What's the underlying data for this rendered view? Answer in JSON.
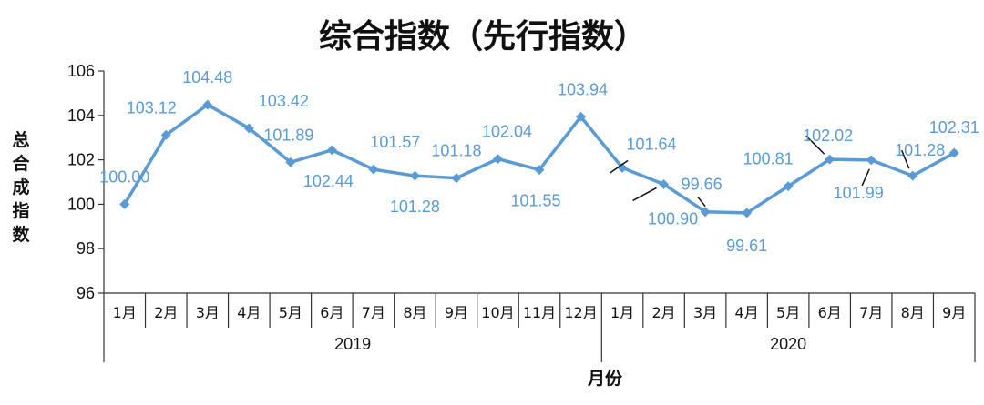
{
  "chart_data": {
    "type": "line",
    "title": "综合指数（先行指数）",
    "ylabel": "总合成指数",
    "xlabel": "月份",
    "ylim": [
      96,
      106
    ],
    "yticks": [
      "96",
      "98",
      "100",
      "102",
      "104",
      "106"
    ],
    "grid": false,
    "legend": "none",
    "line_color": "#5b9bd5",
    "label_color": "#5b9bd5",
    "groups": [
      {
        "label": "2019",
        "categories": [
          "1月",
          "2月",
          "3月",
          "4月",
          "5月",
          "6月",
          "7月",
          "8月",
          "9月",
          "10月",
          "11月",
          "12月"
        ]
      },
      {
        "label": "2020",
        "categories": [
          "1月",
          "2月",
          "3月",
          "4月",
          "5月",
          "6月",
          "7月",
          "8月",
          "9月"
        ]
      }
    ],
    "series": [
      {
        "values": [
          100.0,
          103.12,
          104.48,
          103.42,
          101.89,
          102.44,
          101.57,
          101.28,
          101.18,
          102.04,
          101.55,
          103.94,
          101.64,
          100.9,
          99.66,
          99.61,
          100.81,
          102.02,
          101.99,
          101.28,
          102.31
        ],
        "labels": [
          "100.00",
          "103.12",
          "104.48",
          "103.42",
          "101.89",
          "102.44",
          "101.57",
          "101.28",
          "101.18",
          "102.04",
          "101.55",
          "103.94",
          "101.64",
          "100.90",
          "99.66",
          "99.61",
          "100.81",
          "102.02",
          "101.99",
          "101.28",
          "102.31"
        ]
      }
    ]
  }
}
